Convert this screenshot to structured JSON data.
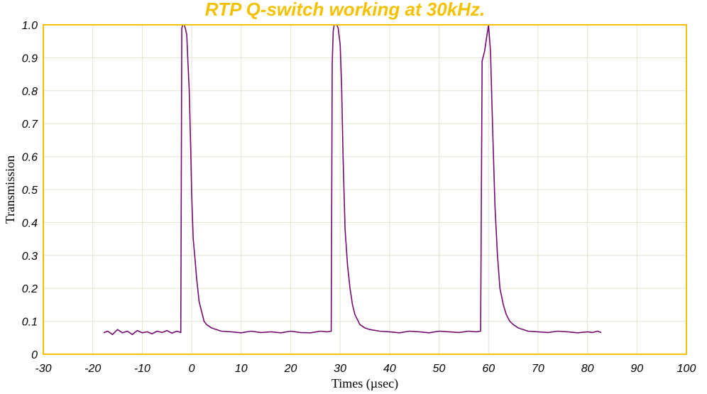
{
  "chart_data": {
    "type": "line",
    "title": "RTP Q-switch working at 30kHz.",
    "xlabel": "Times (µsec)",
    "ylabel": "Transmission",
    "xlim": [
      -30,
      100
    ],
    "ylim": [
      0,
      1.0
    ],
    "xticks": [
      -30,
      -20,
      -10,
      0,
      10,
      20,
      30,
      40,
      50,
      60,
      70,
      80,
      90,
      100
    ],
    "xtick_labels": [
      "-30",
      "-20",
      "-10",
      "0",
      "10",
      "20",
      "30",
      "40",
      "50",
      "60",
      "70",
      "80",
      "90",
      "100"
    ],
    "yticks": [
      0,
      0.1,
      0.2,
      0.3,
      0.4,
      0.5,
      0.6,
      0.7,
      0.8,
      0.9,
      1.0
    ],
    "ytick_labels": [
      "0",
      "0.1",
      "0.2",
      "0.3",
      "0.4",
      "0.5",
      "0.6",
      "0.7",
      "0.8",
      "0.9",
      "1.0"
    ],
    "grid": true,
    "colors": {
      "series": "#730a6e",
      "frame": "#f2c200",
      "title": "#f2c200",
      "grid": "#e3e3d2"
    },
    "series": [
      {
        "x": [
          -17.8,
          -17.0,
          -16.0,
          -15.0,
          -14.0,
          -13.0,
          -12.0,
          -11.0,
          -10.0,
          -9.0,
          -8.0,
          -7.0,
          -6.0,
          -5.0,
          -4.0,
          -3.0,
          -2.2,
          -2.0,
          -1.8,
          -1.5,
          -1.3,
          -1.0,
          -0.8,
          -0.5,
          -0.2,
          0.0,
          0.3,
          0.6,
          1.0,
          1.5,
          2.0,
          2.5,
          3.0,
          4.0,
          5.0,
          6.0,
          8.0,
          10.0,
          12.0,
          14.0,
          16.0,
          18.0,
          20.0,
          22.0,
          24.0,
          26.0,
          27.5,
          28.2,
          28.4,
          28.6,
          28.8,
          29.3,
          29.6,
          30.0,
          30.3,
          30.6,
          31.0,
          31.5,
          32.0,
          32.5,
          33.0,
          34.0,
          35.0,
          36.0,
          38.0,
          40.0,
          42.0,
          44.0,
          46.0,
          48.0,
          50.0,
          52.0,
          54.0,
          56.0,
          57.5,
          58.4,
          58.7,
          59.2,
          59.6,
          60.0,
          60.4,
          60.8,
          61.3,
          61.8,
          62.3,
          63.0,
          63.6,
          64.3,
          65.0,
          66.0,
          67.0,
          68.0,
          70.0,
          72.0,
          74.0,
          76.0,
          78.0,
          80.0,
          81.0,
          82.0,
          82.8
        ],
        "y": [
          0.065,
          0.07,
          0.06,
          0.075,
          0.065,
          0.07,
          0.06,
          0.072,
          0.065,
          0.068,
          0.062,
          0.07,
          0.066,
          0.072,
          0.064,
          0.07,
          0.066,
          0.99,
          1.0,
          1.0,
          0.99,
          0.97,
          0.9,
          0.8,
          0.62,
          0.48,
          0.35,
          0.3,
          0.23,
          0.16,
          0.13,
          0.1,
          0.09,
          0.08,
          0.075,
          0.07,
          0.068,
          0.065,
          0.07,
          0.066,
          0.068,
          0.065,
          0.07,
          0.066,
          0.065,
          0.07,
          0.068,
          0.07,
          0.88,
          0.98,
          1.0,
          1.0,
          0.99,
          0.94,
          0.82,
          0.6,
          0.38,
          0.27,
          0.2,
          0.15,
          0.12,
          0.09,
          0.08,
          0.075,
          0.07,
          0.068,
          0.065,
          0.07,
          0.068,
          0.065,
          0.07,
          0.068,
          0.066,
          0.07,
          0.068,
          0.07,
          0.89,
          0.92,
          0.96,
          1.0,
          0.92,
          0.7,
          0.45,
          0.3,
          0.2,
          0.15,
          0.12,
          0.1,
          0.09,
          0.08,
          0.075,
          0.07,
          0.068,
          0.066,
          0.07,
          0.068,
          0.065,
          0.068,
          0.066,
          0.07,
          0.066
        ]
      }
    ]
  }
}
